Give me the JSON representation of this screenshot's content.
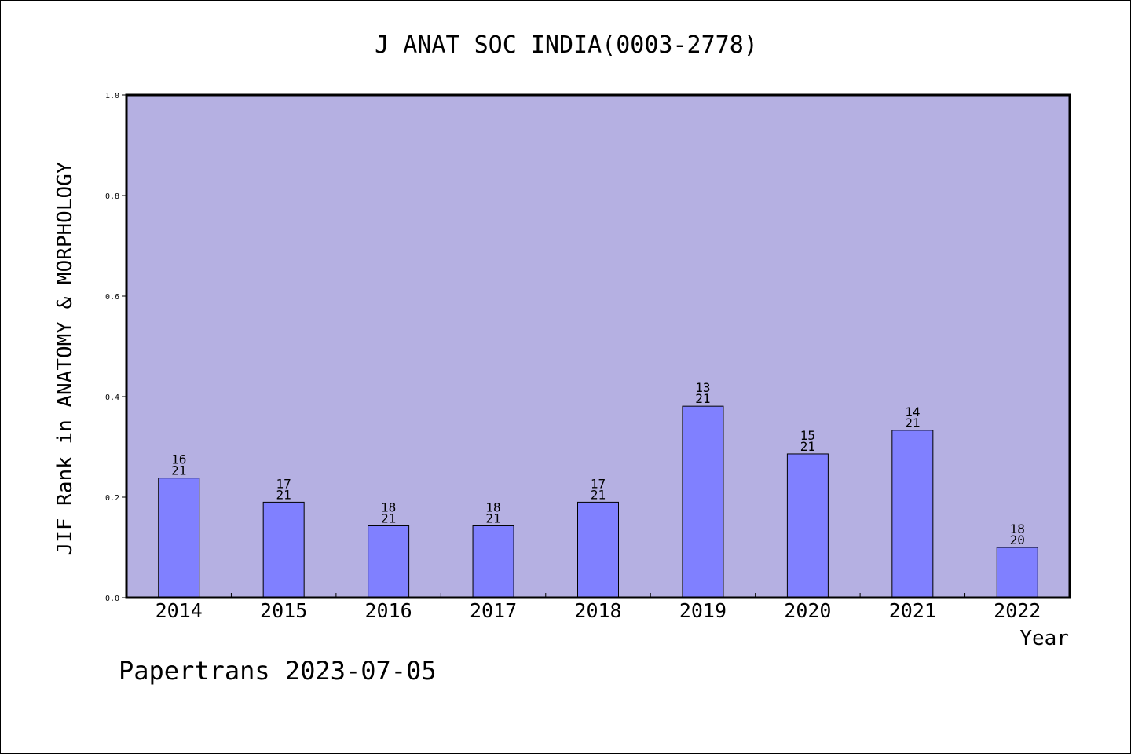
{
  "colors": {
    "plot_background": "#b5b0e2",
    "bar_fill": "#8080ff",
    "bar_stroke": "#000000",
    "axis": "#000000",
    "text": "#000000"
  },
  "chart_data": {
    "type": "bar",
    "title": "J ANAT SOC INDIA(0003-2778)",
    "xlabel": "Year",
    "ylabel": "JIF Rank in ANATOMY & MORPHOLOGY",
    "ylim": [
      0,
      1.0
    ],
    "yticks": [
      "0.0",
      "0.2",
      "0.4",
      "0.6",
      "0.8",
      "1.0"
    ],
    "grid": false,
    "legend": "none",
    "categories": [
      "2014",
      "2015",
      "2016",
      "2017",
      "2018",
      "2019",
      "2020",
      "2021",
      "2022"
    ],
    "values": [
      0.238,
      0.19,
      0.143,
      0.143,
      0.19,
      0.381,
      0.286,
      0.333,
      0.1
    ],
    "rank_labels": [
      {
        "rank": "16",
        "total": "21"
      },
      {
        "rank": "17",
        "total": "21"
      },
      {
        "rank": "18",
        "total": "21"
      },
      {
        "rank": "18",
        "total": "21"
      },
      {
        "rank": "17",
        "total": "21"
      },
      {
        "rank": "13",
        "total": "21"
      },
      {
        "rank": "15",
        "total": "21"
      },
      {
        "rank": "14",
        "total": "21"
      },
      {
        "rank": "18",
        "total": "20"
      }
    ]
  },
  "footer": {
    "credit": "Papertrans 2023-07-05"
  }
}
